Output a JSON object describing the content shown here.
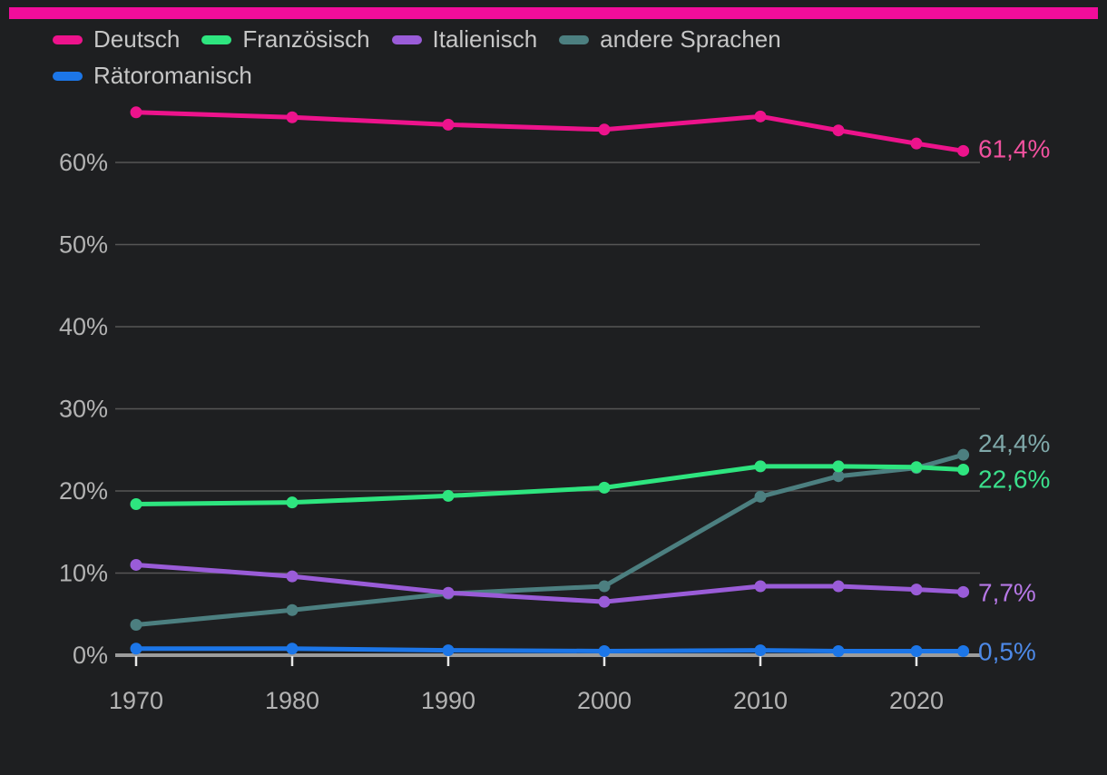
{
  "brand_bar_color": "#F10D9B",
  "background_color": "#1E1F21",
  "grid_color": "#565656",
  "zero_line_color": "#9C9C9C",
  "axis_text_color": "#B3B3B3",
  "legend": {
    "items": [
      {
        "label": "Deutsch",
        "color": "#ED138C"
      },
      {
        "label": "Französisch",
        "color": "#2EE57F"
      },
      {
        "label": "Italienisch",
        "color": "#9A5CD8"
      },
      {
        "label": "andere Sprachen",
        "color": "#4C7F80"
      },
      {
        "label": "Rätoromanisch",
        "color": "#1C76E8"
      }
    ]
  },
  "chart_data": {
    "type": "line",
    "title": "",
    "xlabel": "",
    "ylabel": "",
    "x": [
      1970,
      1980,
      1990,
      2000,
      2010,
      2015,
      2020,
      2023
    ],
    "x_tick_labels": [
      "1970",
      "1980",
      "1990",
      "2000",
      "2010",
      "2020"
    ],
    "y_tick_labels": [
      "0%",
      "10%",
      "20%",
      "30%",
      "40%",
      "50%",
      "60%"
    ],
    "ylim": [
      0,
      67
    ],
    "grid": true,
    "legend_position": "top",
    "series": [
      {
        "name": "Deutsch",
        "color": "#ED138C",
        "label_color": "#F0519E",
        "end_label": "61,4%",
        "values": [
          66.1,
          65.5,
          64.6,
          64.0,
          65.6,
          63.9,
          62.3,
          61.4
        ]
      },
      {
        "name": "Französisch",
        "color": "#2EE57F",
        "label_color": "#3BE08C",
        "end_label": "22,6%",
        "values": [
          18.4,
          18.6,
          19.4,
          20.4,
          23.0,
          23.0,
          22.9,
          22.6
        ]
      },
      {
        "name": "Italienisch",
        "color": "#9A5CD8",
        "label_color": "#B678E6",
        "end_label": "7,7%",
        "values": [
          11.0,
          9.6,
          7.6,
          6.5,
          8.4,
          8.4,
          8.0,
          7.7
        ]
      },
      {
        "name": "andere Sprachen",
        "color": "#4C7F80",
        "label_color": "#7FA8A9",
        "end_label": "24,4%",
        "values": [
          3.7,
          5.5,
          7.5,
          8.4,
          19.3,
          21.8,
          22.8,
          24.4
        ]
      },
      {
        "name": "Rätoromanisch",
        "color": "#1C76E8",
        "label_color": "#4D89E8",
        "end_label": "0,5%",
        "values": [
          0.8,
          0.8,
          0.6,
          0.5,
          0.6,
          0.5,
          0.5,
          0.5
        ]
      }
    ]
  }
}
